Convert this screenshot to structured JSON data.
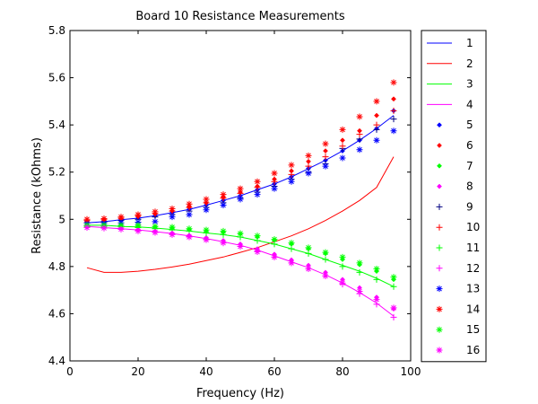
{
  "chart_data": {
    "type": "line",
    "title": "Board 10 Resistance Measurements",
    "xlabel": "Frequency (Hz)",
    "ylabel": "Resistance (kOhms)",
    "xlim": [
      0,
      100
    ],
    "ylim": [
      4.4,
      5.8
    ],
    "xticks": [
      "0",
      "20",
      "40",
      "60",
      "80",
      "100"
    ],
    "yticks": [
      "4.4",
      "4.6",
      "4.8",
      "5",
      "5.2",
      "5.4",
      "5.6",
      "5.8"
    ],
    "grid": false,
    "legend_position": "outside-right",
    "x": [
      5,
      10,
      15,
      20,
      25,
      30,
      35,
      40,
      45,
      50,
      55,
      60,
      65,
      70,
      75,
      80,
      85,
      90,
      95
    ],
    "series": [
      {
        "name": "1",
        "style": "line",
        "color": "#0000ff",
        "values": [
          4.985,
          4.99,
          4.998,
          5.005,
          5.015,
          5.028,
          5.042,
          5.06,
          5.08,
          5.1,
          5.125,
          5.15,
          5.18,
          5.215,
          5.25,
          5.29,
          5.335,
          5.385,
          5.44
        ]
      },
      {
        "name": "2",
        "style": "line",
        "color": "#ff0000",
        "values": [
          4.795,
          4.775,
          4.775,
          4.78,
          4.788,
          4.798,
          4.81,
          4.825,
          4.84,
          4.86,
          4.88,
          4.905,
          4.93,
          4.96,
          4.995,
          5.035,
          5.08,
          5.135,
          5.265
        ]
      },
      {
        "name": "3",
        "style": "line",
        "color": "#00ff00",
        "values": [
          4.975,
          4.975,
          4.97,
          4.968,
          4.963,
          4.957,
          4.95,
          4.942,
          4.935,
          4.925,
          4.91,
          4.895,
          4.875,
          4.855,
          4.83,
          4.805,
          4.78,
          4.75,
          4.715
        ]
      },
      {
        "name": "4",
        "style": "line",
        "color": "#ff00ff",
        "values": [
          4.97,
          4.965,
          4.96,
          4.955,
          4.948,
          4.94,
          4.93,
          4.918,
          4.905,
          4.89,
          4.87,
          4.845,
          4.82,
          4.795,
          4.765,
          4.73,
          4.69,
          4.645,
          4.59
        ]
      },
      {
        "name": "5",
        "style": "marker",
        "marker": "dot",
        "color": "#0000ff",
        "values": [
          4.985,
          4.99,
          4.998,
          5.005,
          5.015,
          5.028,
          5.042,
          5.06,
          5.08,
          5.1,
          5.125,
          5.15,
          5.18,
          5.215,
          5.25,
          5.29,
          5.335,
          5.385,
          5.46
        ]
      },
      {
        "name": "6",
        "style": "marker",
        "marker": "dot",
        "color": "#ff0000",
        "values": [
          4.99,
          4.995,
          5.003,
          5.012,
          5.023,
          5.036,
          5.052,
          5.07,
          5.092,
          5.115,
          5.14,
          5.17,
          5.205,
          5.245,
          5.29,
          5.335,
          5.375,
          5.44,
          5.51
        ]
      },
      {
        "name": "7",
        "style": "marker",
        "marker": "dot",
        "color": "#00ff00",
        "values": [
          4.975,
          4.978,
          4.975,
          4.972,
          4.968,
          4.963,
          4.957,
          4.95,
          4.945,
          4.938,
          4.925,
          4.912,
          4.895,
          4.875,
          4.855,
          4.83,
          4.808,
          4.78,
          4.745
        ]
      },
      {
        "name": "8",
        "style": "marker",
        "marker": "dot",
        "color": "#ff00ff",
        "values": [
          4.97,
          4.967,
          4.962,
          4.957,
          4.95,
          4.942,
          4.932,
          4.922,
          4.91,
          4.895,
          4.875,
          4.852,
          4.828,
          4.805,
          4.775,
          4.745,
          4.71,
          4.67,
          4.62
        ]
      },
      {
        "name": "9",
        "style": "marker",
        "marker": "plus",
        "color": "#000080",
        "values": [
          4.985,
          4.99,
          4.995,
          5.0,
          5.01,
          5.02,
          5.035,
          5.05,
          5.07,
          5.09,
          5.115,
          5.14,
          5.17,
          5.2,
          5.235,
          5.3,
          5.34,
          5.38,
          5.425
        ]
      },
      {
        "name": "10",
        "style": "marker",
        "marker": "plus",
        "color": "#ff0000",
        "values": [
          4.995,
          5.0,
          5.005,
          5.015,
          5.025,
          5.035,
          5.05,
          5.07,
          5.09,
          5.11,
          5.135,
          5.16,
          5.19,
          5.225,
          5.265,
          5.31,
          5.36,
          5.4,
          5.46
        ]
      },
      {
        "name": "11",
        "style": "marker",
        "marker": "plus",
        "color": "#00ff00",
        "values": [
          4.97,
          4.97,
          4.968,
          4.965,
          4.96,
          4.955,
          4.95,
          4.942,
          4.935,
          4.925,
          4.91,
          4.895,
          4.875,
          4.855,
          4.83,
          4.8,
          4.775,
          4.745,
          4.715
        ]
      },
      {
        "name": "12",
        "style": "marker",
        "marker": "plus",
        "color": "#ff00ff",
        "values": [
          4.965,
          4.962,
          4.958,
          4.953,
          4.946,
          4.938,
          4.928,
          4.915,
          4.9,
          4.885,
          4.865,
          4.84,
          4.815,
          4.79,
          4.76,
          4.725,
          4.685,
          4.64,
          4.585
        ]
      },
      {
        "name": "13",
        "style": "marker",
        "marker": "star",
        "color": "#0000ff",
        "values": [
          4.985,
          4.985,
          4.985,
          4.988,
          4.99,
          5.01,
          5.02,
          5.04,
          5.06,
          5.085,
          5.105,
          5.13,
          5.16,
          5.195,
          5.225,
          5.26,
          5.295,
          5.335,
          5.375
        ]
      },
      {
        "name": "14",
        "style": "marker",
        "marker": "star",
        "color": "#ff0000",
        "values": [
          5.0,
          5.003,
          5.01,
          5.02,
          5.032,
          5.045,
          5.065,
          5.085,
          5.105,
          5.13,
          5.16,
          5.195,
          5.23,
          5.27,
          5.32,
          5.38,
          5.435,
          5.5,
          5.58
        ]
      },
      {
        "name": "15",
        "style": "marker",
        "marker": "star",
        "color": "#00ff00",
        "values": [
          4.975,
          4.975,
          4.975,
          4.975,
          4.97,
          4.967,
          4.96,
          4.955,
          4.95,
          4.94,
          4.93,
          4.915,
          4.9,
          4.88,
          4.86,
          4.84,
          4.815,
          4.79,
          4.755
        ]
      },
      {
        "name": "16",
        "style": "marker",
        "marker": "star",
        "color": "#ff00ff",
        "values": [
          4.965,
          4.963,
          4.958,
          4.95,
          4.944,
          4.935,
          4.925,
          4.913,
          4.9,
          4.885,
          4.862,
          4.84,
          4.815,
          4.79,
          4.76,
          4.73,
          4.695,
          4.66,
          4.625
        ]
      }
    ]
  }
}
